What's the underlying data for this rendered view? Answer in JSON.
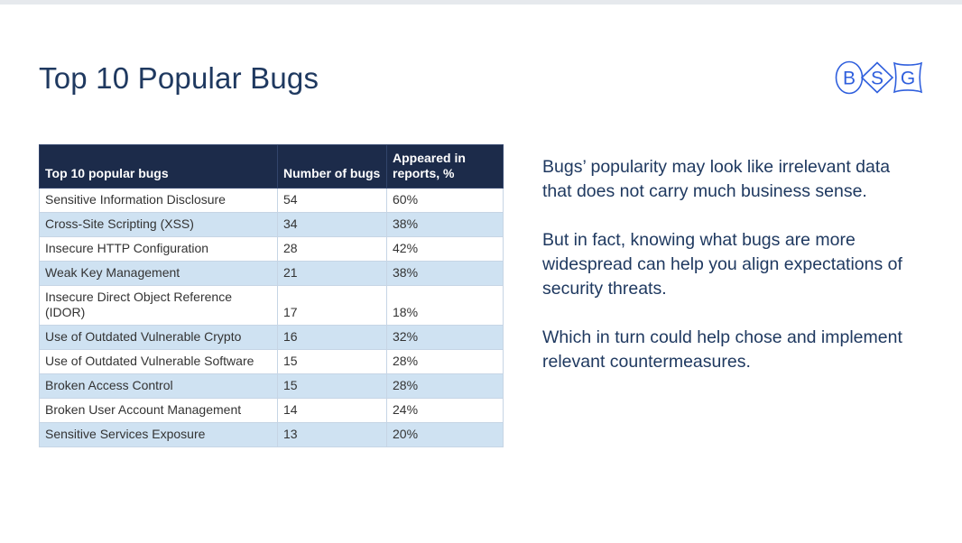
{
  "page": {
    "title": "Top 10 Popular Bugs"
  },
  "logo": {
    "letters": [
      "B",
      "S",
      "G"
    ],
    "color": "#2F5FDD"
  },
  "table": {
    "headers": [
      "Top 10 popular bugs",
      "Number of bugs",
      "Appeared in reports, %"
    ],
    "rows": [
      {
        "bug": "Sensitive Information Disclosure",
        "count": "54",
        "percent": "60%"
      },
      {
        "bug": "Cross-Site Scripting (XSS)",
        "count": "34",
        "percent": "38%"
      },
      {
        "bug": "Insecure HTTP Configuration",
        "count": "28",
        "percent": "42%"
      },
      {
        "bug": "Weak Key Management",
        "count": "21",
        "percent": "38%"
      },
      {
        "bug": "Insecure Direct Object Reference (IDOR)",
        "count": "17",
        "percent": "18%"
      },
      {
        "bug": "Use of Outdated Vulnerable Crypto",
        "count": "16",
        "percent": "32%"
      },
      {
        "bug": "Use of Outdated Vulnerable Software",
        "count": "15",
        "percent": "28%"
      },
      {
        "bug": "Broken Access Control",
        "count": "15",
        "percent": "28%"
      },
      {
        "bug": "Broken User Account Management",
        "count": "14",
        "percent": "24%"
      },
      {
        "bug": "Sensitive Services Exposure",
        "count": "13",
        "percent": "20%"
      }
    ]
  },
  "commentary": {
    "paragraphs": [
      "Bugs’ popularity may look like irrelevant data that does not carry much business sense.",
      "But in fact, knowing what bugs are more widespread can help you align expectations of security threats.",
      "Which in turn could help chose and implement relevant countermeasures."
    ]
  },
  "colors": {
    "accent_navy": "#1F3960",
    "table_header_bg": "#1C2B4A",
    "table_alt_row_bg": "#CFE2F2",
    "table_border": "#C6D5E5",
    "cell_text": "#333333",
    "logo_blue": "#2F5FDD",
    "top_strip": "#E6E9ED"
  }
}
